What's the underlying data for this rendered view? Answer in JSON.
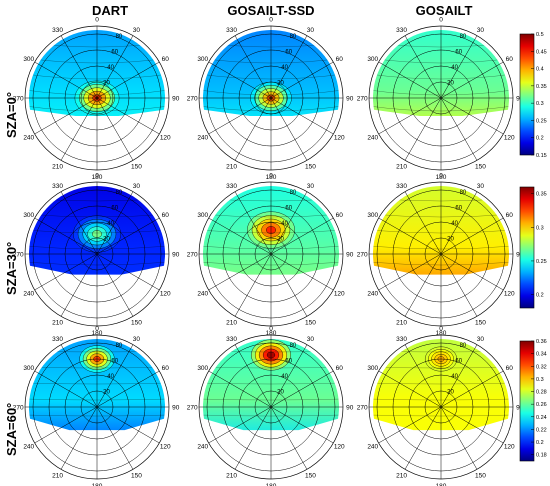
{
  "chart_data": {
    "type": "heatmap",
    "layout": "3x3 polar contour plots",
    "columns": [
      "DART",
      "GOSAILT-SSD",
      "GOSAILT"
    ],
    "rows": [
      "SZA=0°",
      "SZA=30°",
      "SZA=60°"
    ],
    "azimuth_ticks": [
      "0",
      "30",
      "60",
      "90",
      "120",
      "150",
      "180",
      "210",
      "240",
      "270",
      "300",
      "330"
    ],
    "zenith_ticks": [
      "20",
      "40",
      "60",
      "80"
    ],
    "colorbars": [
      {
        "row": "SZA=0°",
        "range": [
          0.15,
          0.5
        ],
        "ticks": [
          "0.5",
          "0.45",
          "0.4",
          "0.35",
          "0.3",
          "0.25",
          "0.2",
          "0.15"
        ]
      },
      {
        "row": "SZA=30°",
        "range": [
          0.18,
          0.36
        ],
        "ticks": [
          "0.35",
          "0.3",
          "0.25",
          "0.2"
        ]
      },
      {
        "row": "SZA=60°",
        "range": [
          0.17,
          0.36
        ],
        "ticks": [
          "0.36",
          "0.34",
          "0.32",
          "0.3",
          "0.28",
          "0.26",
          "0.24",
          "0.22",
          "0.2",
          "0.18"
        ]
      }
    ],
    "colormap": "jet",
    "grid": true
  },
  "colors": {
    "grid": "#000000",
    "background": "#ffffff"
  }
}
